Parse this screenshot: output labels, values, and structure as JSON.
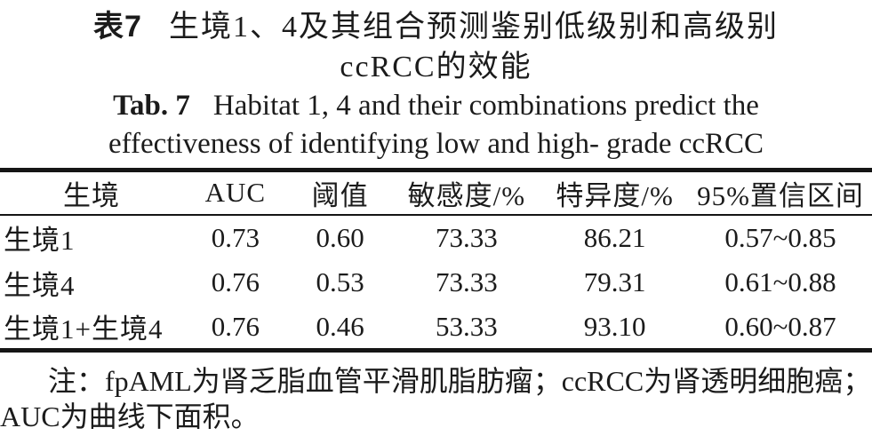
{
  "caption_zh": {
    "label": "表7",
    "line1": "生境1、4及其组合预测鉴别低级别和高级别",
    "line2": "ccRCC的效能"
  },
  "caption_en": {
    "label": "Tab. 7",
    "line1": "Habitat 1, 4 and their combinations predict the",
    "line2": "effectiveness of identifying low and high- grade ccRCC"
  },
  "table": {
    "headers": {
      "habitat": "生境",
      "auc": "AUC",
      "threshold": "阈值",
      "sensitivity": "敏感度/%",
      "specificity": "特异度/%",
      "ci_95": "95%置信区间"
    },
    "rows": [
      {
        "habitat": "生境1",
        "auc": "0.73",
        "threshold": "0.60",
        "sensitivity": "73.33",
        "specificity": "86.21",
        "ci_95": "0.57~0.85"
      },
      {
        "habitat": "生境4",
        "auc": "0.76",
        "threshold": "0.53",
        "sensitivity": "73.33",
        "specificity": "79.31",
        "ci_95": "0.61~0.88"
      },
      {
        "habitat": "生境1+生境4",
        "auc": "0.76",
        "threshold": "0.46",
        "sensitivity": "53.33",
        "specificity": "93.10",
        "ci_95": "0.60~0.87"
      }
    ]
  },
  "note": {
    "line1": "注：fpAML为肾乏脂血管平滑肌脂肪瘤；ccRCC为肾透明细胞癌；",
    "line2": "AUC为曲线下面积。"
  },
  "colors": {
    "background": "#ffffff",
    "text": "#1b1b1b",
    "rule": "#151515"
  }
}
